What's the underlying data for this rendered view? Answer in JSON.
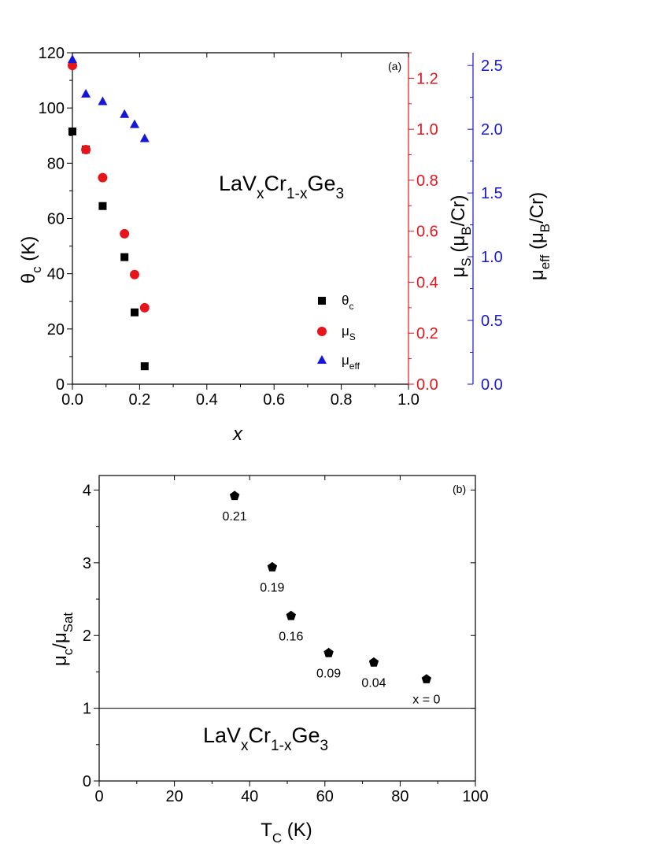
{
  "chart_data": [
    {
      "type": "scatter",
      "panel_label": "(a)",
      "annotation": {
        "main": "LaV",
        "sub1": "x",
        "mid": "Cr",
        "sub2": "1-x",
        "end": "Ge",
        "sub3": "3"
      },
      "xlabel": "x",
      "xlim": [
        0,
        1.0
      ],
      "xticks": [
        "0.0",
        "0.2",
        "0.4",
        "0.6",
        "0.8",
        "1.0"
      ],
      "axes": {
        "left": {
          "label_main": "θ",
          "label_sub": "c",
          "label_tail": " (K)",
          "ylim": [
            0,
            120
          ],
          "ticks": [
            "0",
            "20",
            "40",
            "60",
            "80",
            "100",
            "120"
          ],
          "color": "#000000"
        },
        "right1": {
          "label_main": "μ",
          "label_sub": "S",
          "label_tail": " (μ",
          "label_sub2": "B",
          "label_end": "/Cr)",
          "ylim": [
            0,
            1.3
          ],
          "ticks": [
            "0.0",
            "0.2",
            "0.4",
            "0.6",
            "0.8",
            "1.0",
            "1.2"
          ],
          "color": "#e8141b"
        },
        "right2": {
          "label_main": "μ",
          "label_sub": "eff",
          "label_tail": " (μ",
          "label_sub2": "B",
          "label_end": "/Cr)",
          "ylim": [
            0,
            2.6
          ],
          "ticks": [
            "0.0",
            "0.5",
            "1.0",
            "1.5",
            "2.0",
            "2.5"
          ],
          "color": "#1616d9"
        }
      },
      "series": [
        {
          "legend_main": "θ",
          "legend_sub": "c",
          "axis": "left",
          "marker": "square",
          "color": "#000000",
          "x": [
            0.0,
            0.04,
            0.09,
            0.155,
            0.185,
            0.215
          ],
          "y": [
            91.5,
            85,
            64.5,
            46,
            26,
            6.5
          ]
        },
        {
          "legend_main": "μ",
          "legend_sub": "S",
          "axis": "right1",
          "marker": "circle",
          "color": "#e8141b",
          "x": [
            0.0,
            0.04,
            0.09,
            0.155,
            0.185,
            0.215
          ],
          "y": [
            1.25,
            0.92,
            0.81,
            0.59,
            0.43,
            0.3
          ]
        },
        {
          "legend_main": "μ",
          "legend_sub": "eff",
          "axis": "right2",
          "marker": "triangle",
          "color": "#1616d9",
          "x": [
            0.0,
            0.04,
            0.09,
            0.155,
            0.185,
            0.215
          ],
          "y": [
            2.55,
            2.28,
            2.22,
            2.12,
            2.04,
            1.93
          ]
        }
      ]
    },
    {
      "type": "scatter",
      "panel_label": "(b)",
      "annotation": {
        "main": "LaV",
        "sub1": "x",
        "mid": "Cr",
        "sub2": "1-x",
        "end": "Ge",
        "sub3": "3"
      },
      "xlabel_main": "T",
      "xlabel_sub": "C",
      "xlabel_tail": " (K)",
      "ylabel": {
        "m1": "μ",
        "s1": "c",
        "mid": "/μ",
        "s2": "Sat"
      },
      "xlim": [
        0,
        100
      ],
      "ylim": [
        0,
        4.2
      ],
      "xticks": [
        "0",
        "20",
        "40",
        "60",
        "80",
        "100"
      ],
      "yticks": [
        "0",
        "1",
        "2",
        "3",
        "4"
      ],
      "reference_line_y": 1,
      "series": [
        {
          "marker": "pentagon",
          "color": "#000000",
          "x": [
            36,
            46,
            51,
            61,
            73,
            87
          ],
          "y": [
            3.92,
            2.94,
            2.27,
            1.76,
            1.63,
            1.4
          ],
          "labels": [
            "0.21",
            "0.19",
            "0.16",
            "0.09",
            "0.04",
            "x = 0"
          ]
        }
      ]
    }
  ]
}
